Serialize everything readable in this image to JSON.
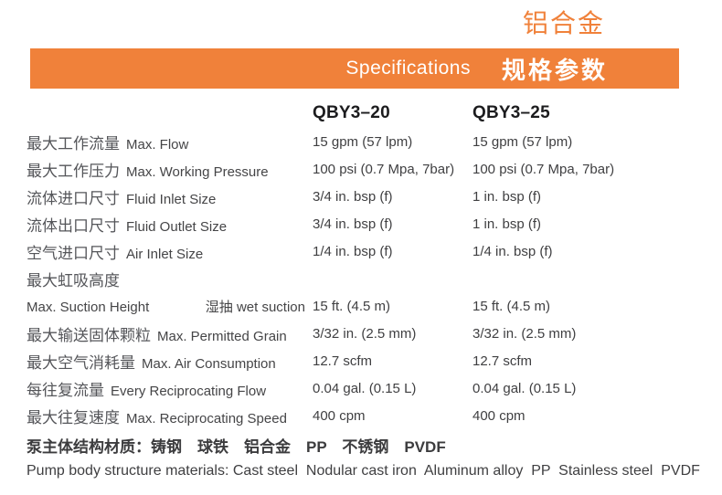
{
  "colors": {
    "accent": "#F0813A",
    "banner_text": "#FFFFFF",
    "body_text": "#3F3F41"
  },
  "top_title": "铝合金",
  "banner": {
    "title_en": "Specifications",
    "title_zh": "规格参数"
  },
  "table": {
    "col1": "QBY3–20",
    "col2": "QBY3–25",
    "rows": [
      {
        "zh": "最大工作流量",
        "en": "Max. Flow",
        "v1": "15 gpm (57 lpm)",
        "v2": "15 gpm (57 lpm)"
      },
      {
        "zh": "最大工作压力",
        "en": "Max. Working Pressure",
        "v1": "100 psi (0.7 Mpa, 7bar)",
        "v2": "100 psi (0.7 Mpa, 7bar)"
      },
      {
        "zh": "流体进口尺寸",
        "en": "Fluid Inlet Size",
        "v1": "3/4 in. bsp (f)",
        "v2": "1 in. bsp (f)"
      },
      {
        "zh": "流体出口尺寸",
        "en": "Fluid Outlet Size",
        "v1": "3/4 in. bsp (f)",
        "v2": "1 in. bsp (f)"
      },
      {
        "zh": "空气进口尺寸",
        "en": "Air Inlet Size",
        "v1": "1/4 in. bsp (f)",
        "v2": "1/4 in. bsp (f)"
      },
      {
        "zh": "最大虹吸高度",
        "en": "",
        "v1": "",
        "v2": ""
      },
      {
        "en": "Max. Suction Height",
        "zh2": "湿抽 wet suction",
        "v1": "15 ft. (4.5 m)",
        "v2": "15 ft. (4.5 m)"
      },
      {
        "zh": "最大输送固体颗粒",
        "en": "Max. Permitted Grain",
        "v1": "3/32 in. (2.5 mm)",
        "v2": "3/32 in. (2.5 mm)"
      },
      {
        "zh": "最大空气消耗量",
        "en": "Max. Air Consumption",
        "v1": "12.7 scfm",
        "v2": "12.7 scfm"
      },
      {
        "zh": "每往复流量",
        "en": "Every Reciprocating Flow",
        "v1": "0.04 gal. (0.15 L)",
        "v2": "0.04 gal. (0.15 L)"
      },
      {
        "zh": "最大往复速度",
        "en": "Max. Reciprocating Speed",
        "v1": "400 cpm",
        "v2": "400 cpm"
      }
    ]
  },
  "footer": {
    "materials_zh": "泵主体结构材质：铸钢　球铁　铝合金　PP　不锈钢　PVDF",
    "materials_en": "Pump body structure materials: Cast steel  Nodular cast iron  Aluminum alloy  PP  Stainless steel  PVDF"
  }
}
